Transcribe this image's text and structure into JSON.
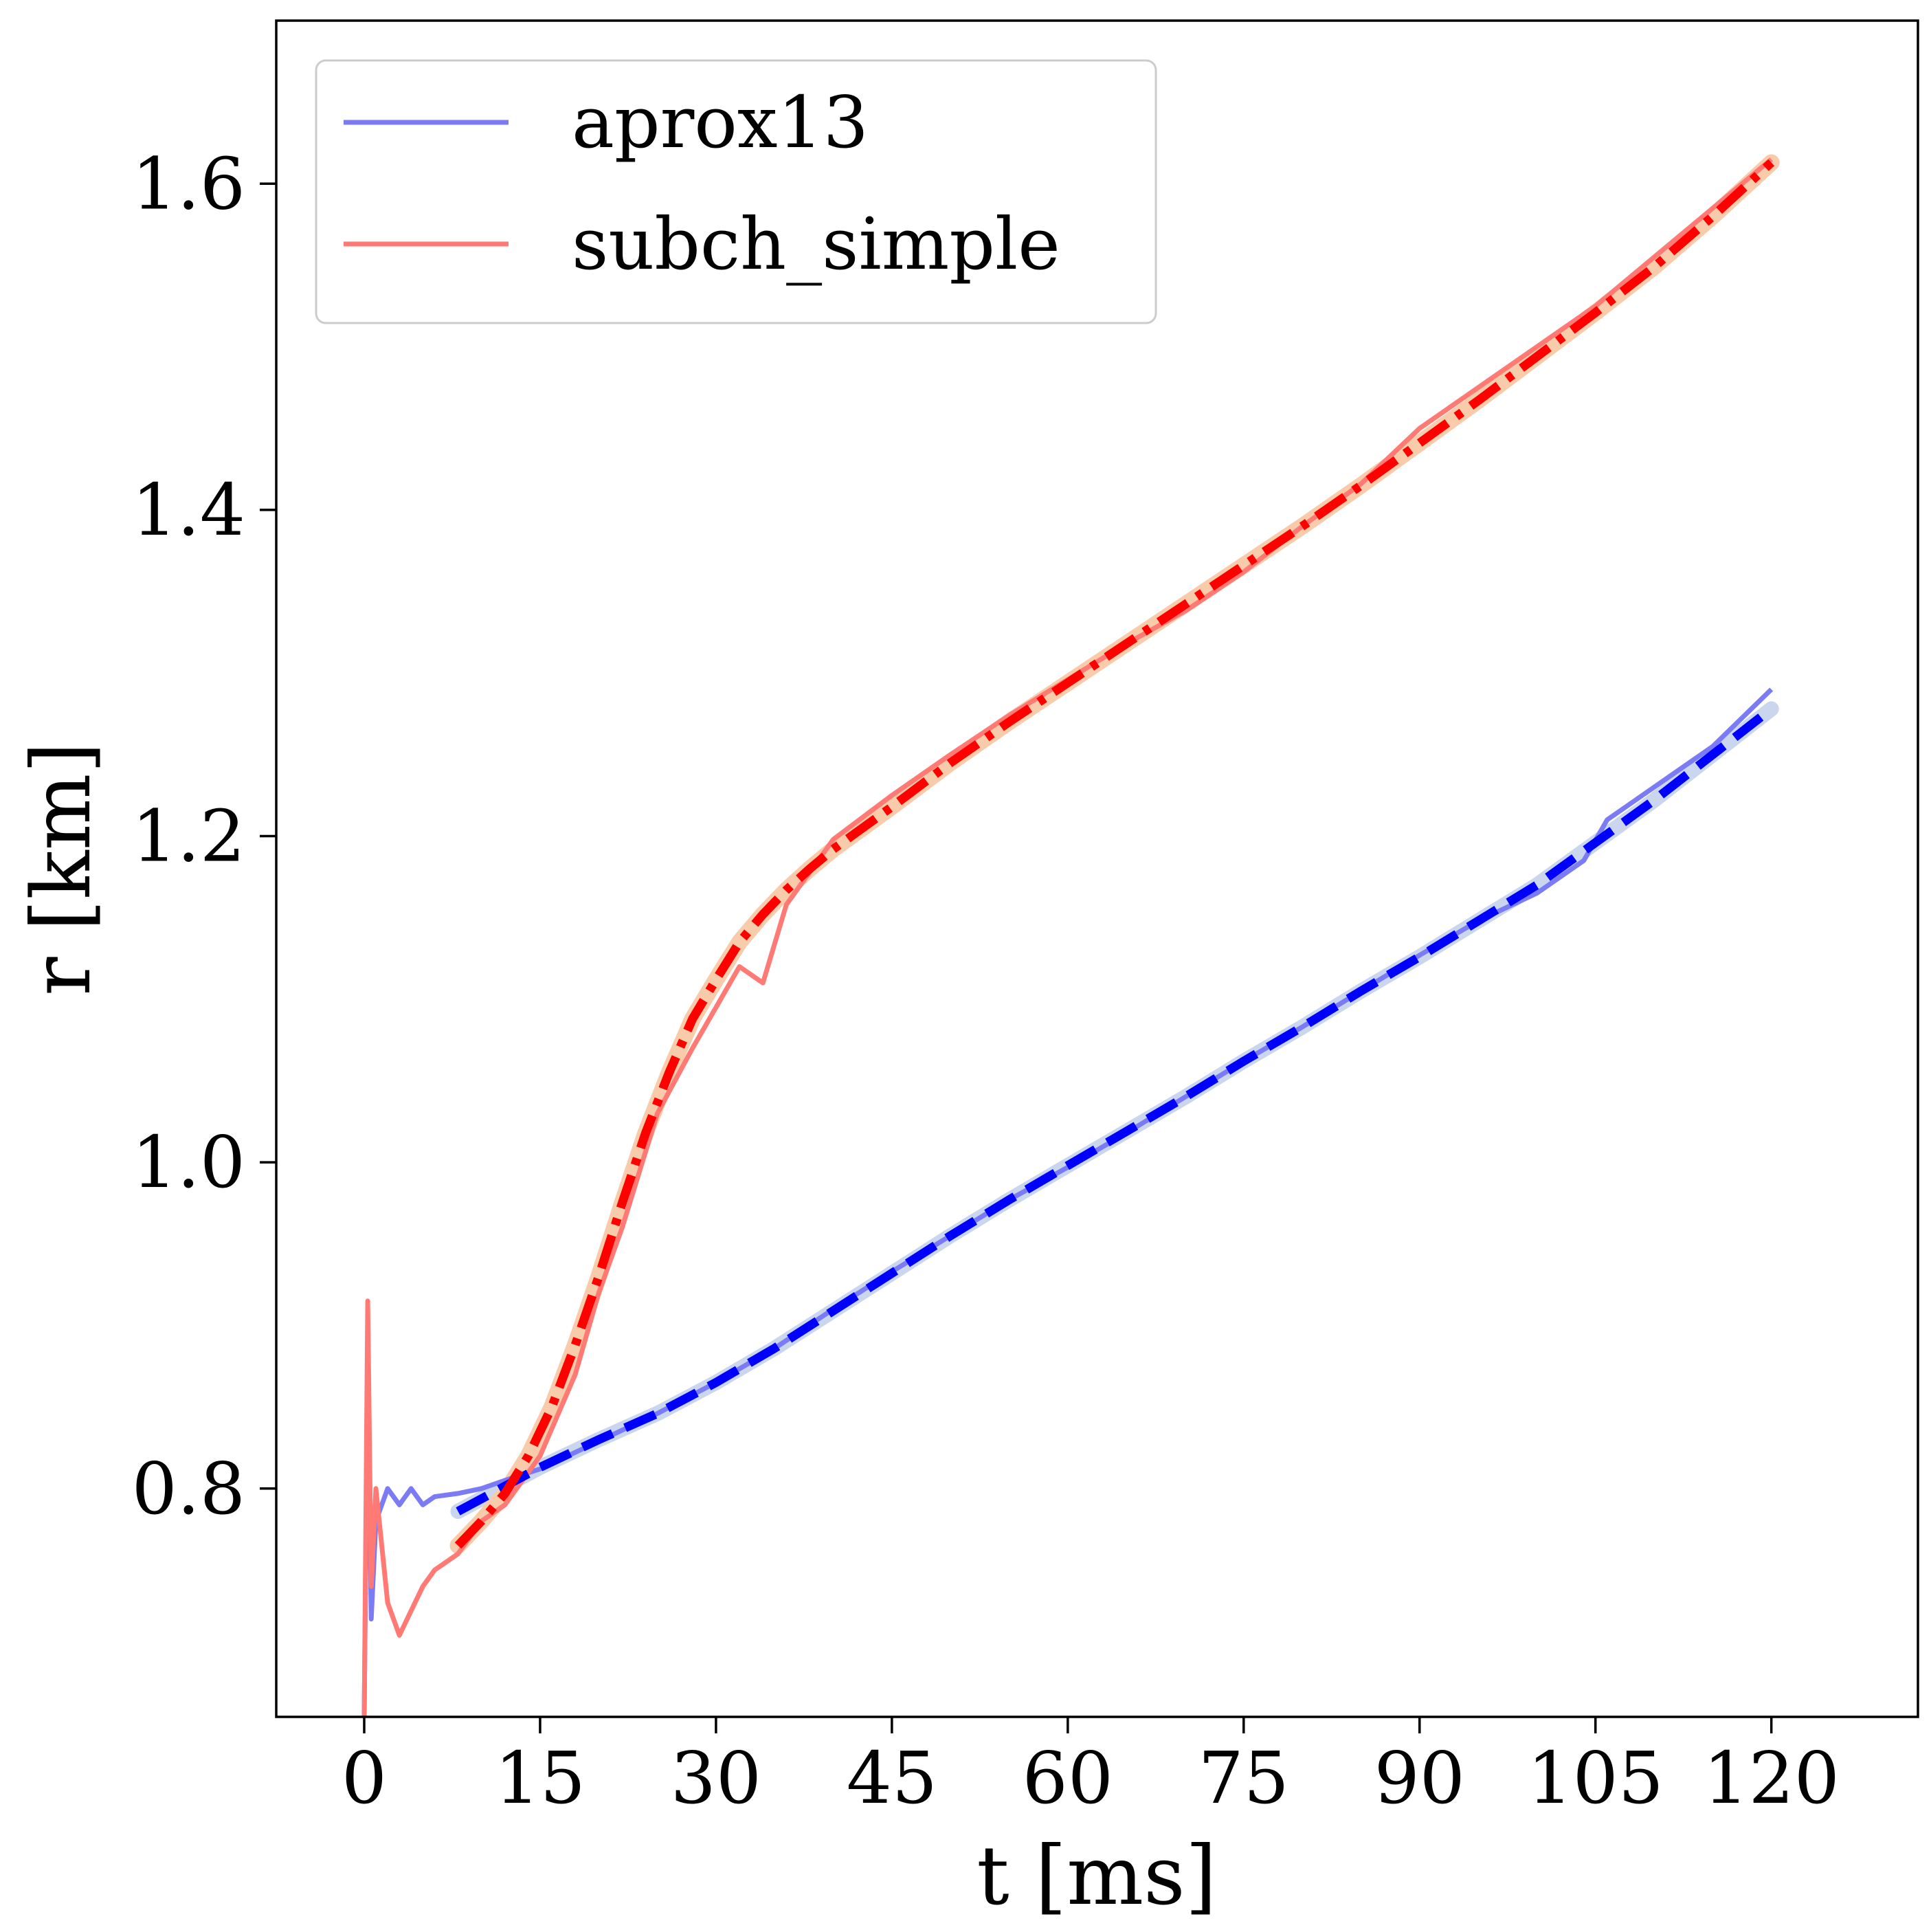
{
  "chart_data": {
    "type": "line",
    "xlabel": "t [ms]",
    "ylabel": "r [km]",
    "xlim": [
      -7.5,
      132.5
    ],
    "ylim": [
      0.66,
      1.7
    ],
    "xticks": [
      0,
      15,
      30,
      45,
      60,
      75,
      90,
      105,
      120
    ],
    "xtick_labels": [
      "0",
      "15",
      "30",
      "45",
      "60",
      "75",
      "90",
      "105",
      "120"
    ],
    "yticks": [
      0.8,
      1.0,
      1.2,
      1.4,
      1.6
    ],
    "ytick_labels": [
      "0.8",
      "1.0",
      "1.2",
      "1.4",
      "1.6"
    ],
    "grid": false,
    "legend_position": "top-left",
    "colors": {
      "aprox13_data": "#7b7bf5",
      "aprox13_fit": "#0000ff",
      "aprox13_band": "#c9d6ee",
      "subch_data": "#ff7a74",
      "subch_fit": "#ff0000",
      "subch_band": "#f8ccaa"
    },
    "series": [
      {
        "name": "aprox13",
        "style": "data",
        "x": [
          0,
          0.3,
          0.6,
          1,
          2,
          3,
          4,
          5,
          6,
          8,
          10,
          12,
          15,
          20,
          25,
          30,
          35,
          40,
          45,
          50,
          55,
          60,
          65,
          70,
          75,
          80,
          85,
          90,
          95,
          100,
          104,
          106,
          110,
          115,
          120
        ],
        "y": [
          0.66,
          0.88,
          0.72,
          0.78,
          0.8,
          0.79,
          0.8,
          0.79,
          0.795,
          0.797,
          0.8,
          0.805,
          0.812,
          0.829,
          0.846,
          0.865,
          0.886,
          0.91,
          0.933,
          0.955,
          0.977,
          0.997,
          1.018,
          1.04,
          1.062,
          1.083,
          1.105,
          1.127,
          1.148,
          1.165,
          1.185,
          1.21,
          1.23,
          1.255,
          1.29
        ]
      },
      {
        "name": "aprox13",
        "style": "fit",
        "x": [
          8,
          15,
          20,
          25,
          30,
          35,
          40,
          45,
          50,
          55,
          60,
          65,
          70,
          75,
          80,
          85,
          90,
          95,
          100,
          105,
          110,
          115,
          120
        ],
        "y": [
          0.786,
          0.813,
          0.83,
          0.846,
          0.865,
          0.886,
          0.909,
          0.932,
          0.955,
          0.977,
          0.998,
          1.019,
          1.04,
          1.062,
          1.083,
          1.105,
          1.126,
          1.148,
          1.17,
          1.196,
          1.222,
          1.25,
          1.278
        ]
      },
      {
        "name": "subch_simple",
        "style": "data",
        "x": [
          0,
          0.3,
          0.6,
          1,
          2,
          3,
          4,
          5,
          6,
          8,
          10,
          12,
          15,
          18,
          20,
          22,
          25,
          28,
          30,
          32,
          34,
          36,
          40,
          45,
          50,
          55,
          60,
          65,
          70,
          75,
          80,
          85,
          90,
          95,
          100,
          105,
          110,
          115,
          120
        ],
        "y": [
          0.66,
          0.915,
          0.74,
          0.8,
          0.73,
          0.71,
          0.725,
          0.74,
          0.75,
          0.76,
          0.78,
          0.79,
          0.82,
          0.87,
          0.92,
          0.96,
          1.03,
          1.07,
          1.095,
          1.12,
          1.11,
          1.158,
          1.198,
          1.225,
          1.25,
          1.274,
          1.296,
          1.318,
          1.338,
          1.362,
          1.39,
          1.416,
          1.45,
          1.475,
          1.5,
          1.525,
          1.555,
          1.585,
          1.615
        ]
      },
      {
        "name": "subch_simple",
        "style": "fit",
        "x": [
          8,
          10,
          12,
          14,
          16,
          18,
          20,
          22,
          24,
          26,
          28,
          30,
          32,
          34,
          36,
          38,
          40,
          45,
          50,
          55,
          60,
          65,
          70,
          75,
          80,
          85,
          90,
          95,
          100,
          105,
          110,
          115,
          120
        ],
        "y": [
          0.765,
          0.78,
          0.797,
          0.82,
          0.85,
          0.888,
          0.93,
          0.975,
          1.018,
          1.055,
          1.088,
          1.112,
          1.135,
          1.152,
          1.167,
          1.18,
          1.192,
          1.218,
          1.245,
          1.27,
          1.294,
          1.318,
          1.342,
          1.366,
          1.39,
          1.415,
          1.441,
          1.467,
          1.494,
          1.521,
          1.549,
          1.58,
          1.613
        ]
      }
    ]
  }
}
